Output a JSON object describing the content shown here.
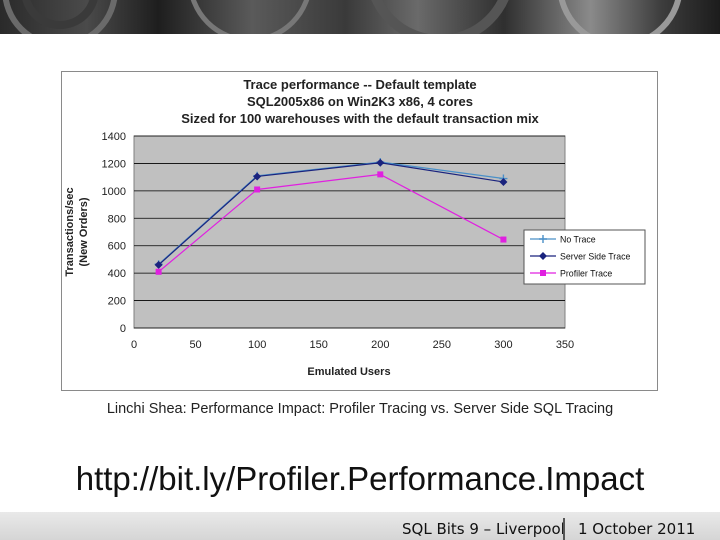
{
  "chart_data": {
    "type": "line",
    "title_lines": [
      "Trace performance -- Default template",
      "SQL2005x86 on Win2K3 x86, 4 cores",
      "Sized for 100 warehouses with the default transaction mix"
    ],
    "xlabel": "Emulated Users",
    "ylabel_lines": [
      "Transactions/sec",
      "(New Orders)"
    ],
    "xlim": [
      0,
      350
    ],
    "ylim": [
      0,
      1400
    ],
    "xticks": [
      0,
      50,
      100,
      150,
      200,
      250,
      300,
      350
    ],
    "yticks": [
      0,
      200,
      400,
      600,
      800,
      1000,
      1200,
      1400
    ],
    "grid": true,
    "legend_position": "right",
    "x": [
      20,
      100,
      200,
      300
    ],
    "series": [
      {
        "name": "No Trace",
        "values": [
          465,
          1110,
          1210,
          1090
        ],
        "color": "#4a90c8",
        "marker": "plus"
      },
      {
        "name": "Server Side Trace",
        "values": [
          460,
          1105,
          1205,
          1065
        ],
        "color": "#1a237e",
        "marker": "diamond"
      },
      {
        "name": "Profiler Trace",
        "values": [
          410,
          1010,
          1120,
          645
        ],
        "color": "#e020e0",
        "marker": "square"
      }
    ]
  },
  "caption": "Linchi Shea:  Performance Impact: Profiler Tracing vs. Server Side SQL Tracing",
  "url": "http://bit.ly/Profiler.Performance.Impact",
  "footer": {
    "event": "SQL Bits 9 – Liverpool",
    "date": "1 October 2011"
  }
}
